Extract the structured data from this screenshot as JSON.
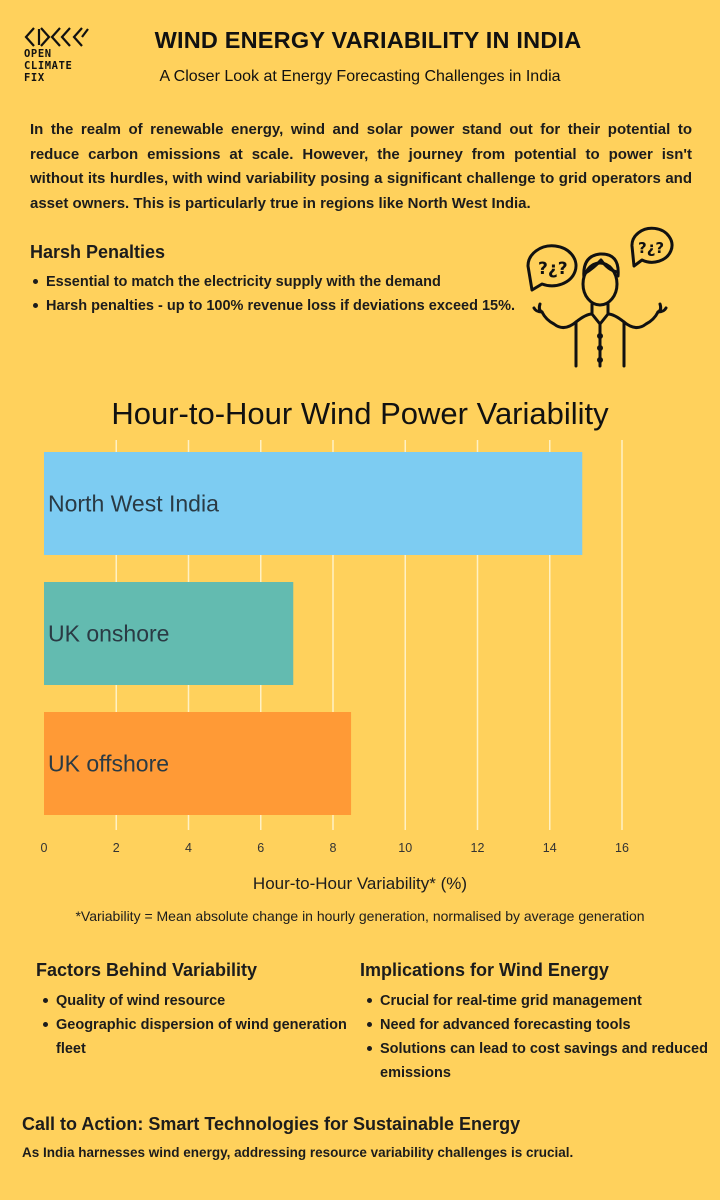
{
  "header": {
    "logo_lines": [
      "OPEN",
      "CLIMATE",
      "FIX"
    ],
    "title": "WIND ENERGY VARIABILITY IN INDIA",
    "subtitle": "A Closer Look at Energy Forecasting Challenges in India"
  },
  "intro": "In the realm of renewable energy, wind and solar power stand out for their potential to reduce carbon emissions at scale. However, the journey from potential to power isn't without its hurdles, with wind variability posing a significant challenge to grid operators and asset owners. This is particularly true in regions like North West India.",
  "penalties": {
    "title": "Harsh Penalties",
    "items": [
      "Essential to match the electricity supply with the demand",
      "Harsh penalties - up to 100% revenue loss if deviations exceed 15%."
    ],
    "illustration": "confused-person-icon"
  },
  "chart_data": {
    "type": "bar",
    "orientation": "horizontal",
    "title": "Hour-to-Hour Wind Power Variability",
    "xlabel": "Hour-to-Hour Variability* (%)",
    "categories": [
      "North West India",
      "UK onshore",
      "UK offshore"
    ],
    "values": [
      14.9,
      6.9,
      8.5
    ],
    "colors": [
      "#7DCCF2",
      "#63BBB0",
      "#FF9A36"
    ],
    "xlim": [
      0,
      16
    ],
    "xticks": [
      0,
      2,
      4,
      6,
      8,
      10,
      12,
      14,
      16
    ],
    "grid": true,
    "footnote": "*Variability = Mean absolute change in hourly generation, normalised by average generation"
  },
  "factors": {
    "title": "Factors Behind Variability",
    "items": [
      "Quality of wind resource",
      "Geographic dispersion of wind generation fleet"
    ]
  },
  "implications": {
    "title": "Implications for Wind Energy",
    "items": [
      "Crucial for real-time grid management",
      "Need for advanced forecasting tools",
      "Solutions can lead to cost savings and reduced emissions"
    ]
  },
  "cta": {
    "title": "Call to Action: Smart Technologies for Sustainable Energy",
    "text": "As India harnesses wind energy, addressing resource variability challenges is crucial."
  }
}
